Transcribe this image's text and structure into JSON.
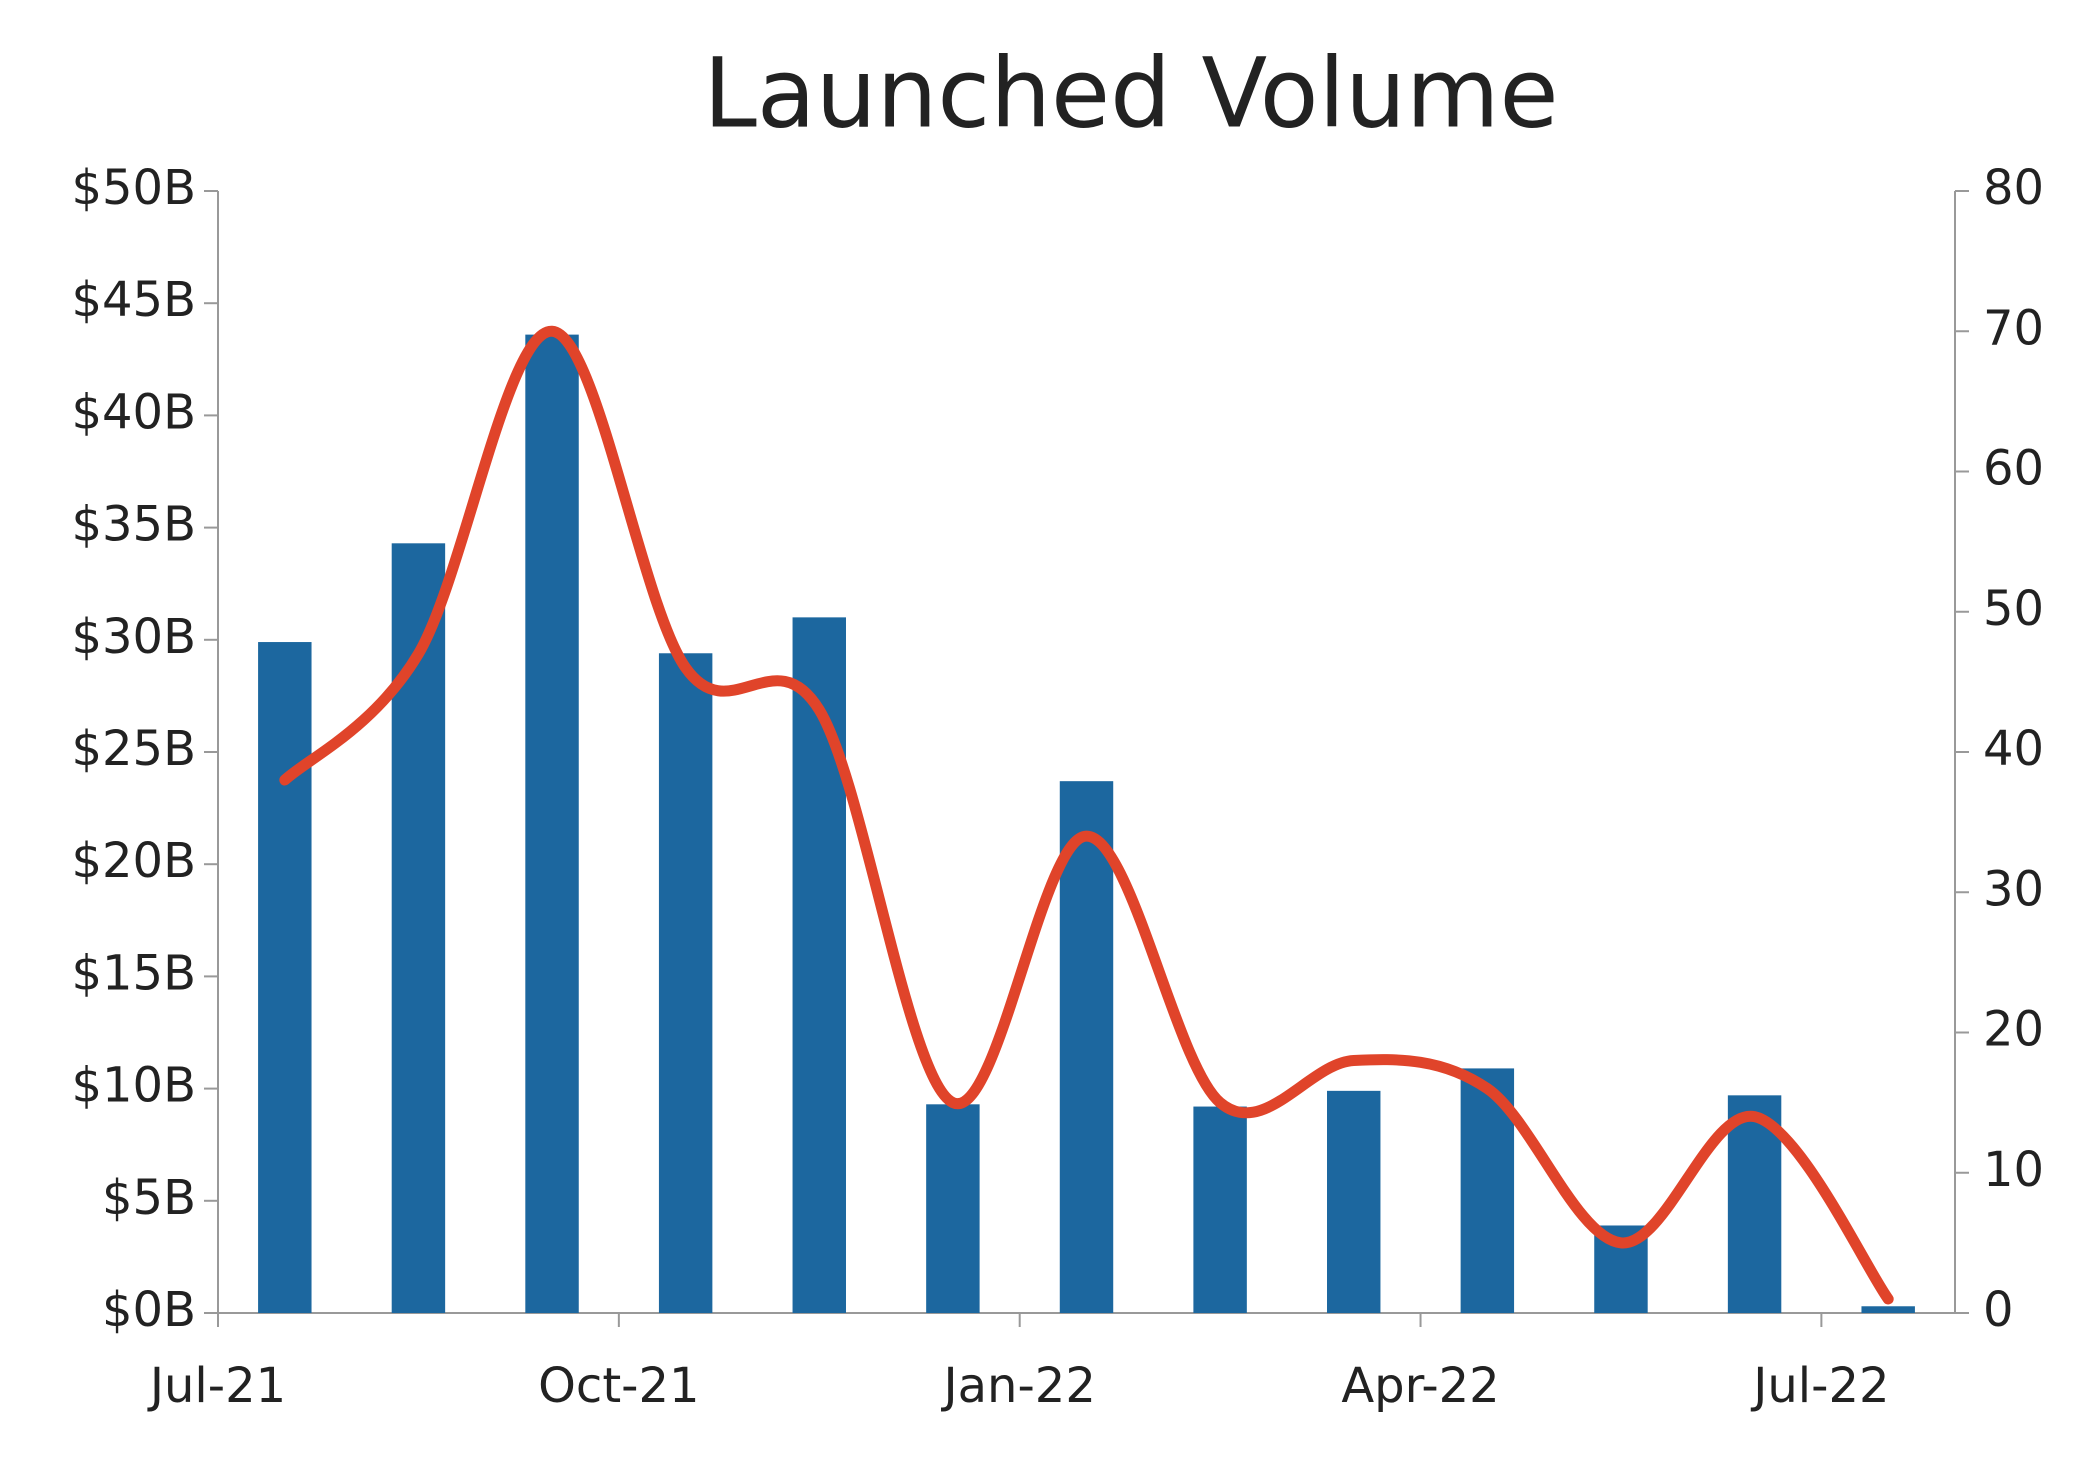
{
  "chart_data": {
    "type": "bar",
    "title": "Launched Volume",
    "categories": [
      "Jul-21",
      null,
      null,
      "Oct-21",
      null,
      null,
      "Jan-22",
      null,
      null,
      "Apr-22",
      null,
      null,
      "Jul-22"
    ],
    "series": [
      {
        "color": "#1c679f",
        "values": [
          29.9,
          34.3,
          43.6,
          29.4,
          31.0,
          9.3,
          23.7,
          9.2,
          9.9,
          10.9,
          3.9,
          9.7,
          0.3
        ]
      },
      {
        "type": "line",
        "axis": "y2",
        "color": "#e0442a",
        "values": [
          38,
          47,
          70,
          46,
          43,
          15,
          34,
          15,
          18,
          16,
          5,
          14,
          1
        ]
      }
    ],
    "ylim": [
      0,
      50
    ],
    "yticks": [
      {
        "value": 0,
        "label": "$0B"
      },
      {
        "value": 5,
        "label": "$5B"
      },
      {
        "value": 10,
        "label": "$10B"
      },
      {
        "value": 15,
        "label": "$15B"
      },
      {
        "value": 20,
        "label": "$20B"
      },
      {
        "value": 25,
        "label": "$25B"
      },
      {
        "value": 30,
        "label": "$30B"
      },
      {
        "value": 35,
        "label": "$35B"
      },
      {
        "value": 40,
        "label": "$40B"
      },
      {
        "value": 45,
        "label": "$45B"
      },
      {
        "value": 50,
        "label": "$50B"
      }
    ],
    "y2lim": [
      0,
      80
    ],
    "y2ticks": [
      0,
      10,
      20,
      30,
      40,
      50,
      60,
      70,
      80
    ],
    "grid": false
  }
}
